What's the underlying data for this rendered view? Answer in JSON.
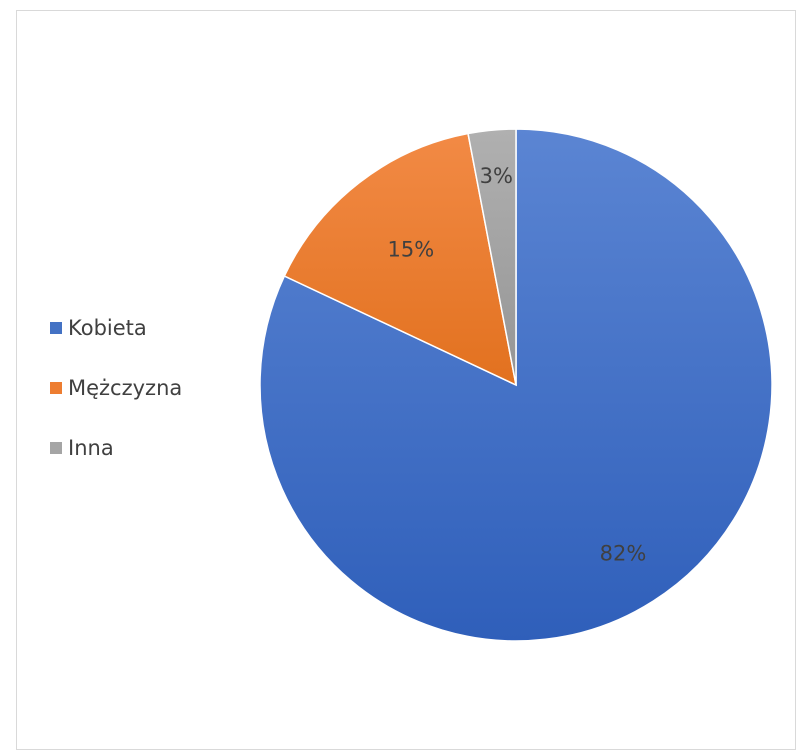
{
  "chart_data": {
    "type": "pie",
    "categories": [
      "Kobieta",
      "Mężczyzna",
      "Inna"
    ],
    "values": [
      82,
      15,
      3
    ],
    "data_labels": [
      "82%",
      "15%",
      "3%"
    ],
    "colors": [
      "#4472c4",
      "#ed7d31",
      "#a5a5a5"
    ],
    "legend_position": "left"
  }
}
